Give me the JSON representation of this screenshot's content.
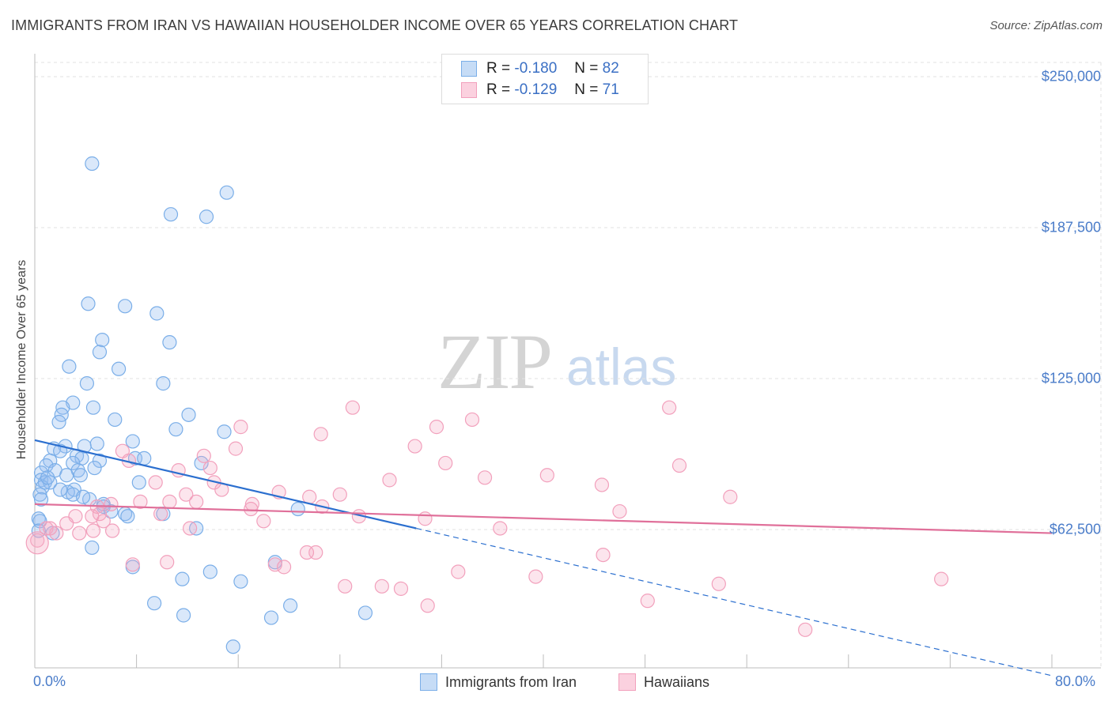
{
  "title": "IMMIGRANTS FROM IRAN VS HAWAIIAN HOUSEHOLDER INCOME OVER 65 YEARS CORRELATION CHART",
  "source": "Source: ZipAtlas.com",
  "watermark": {
    "part1": "ZIP",
    "part2": "atlas"
  },
  "legend": {
    "rows": [
      {
        "r_label": "R =",
        "r_value": "-0.180",
        "n_label": "N =",
        "n_value": "82",
        "color": "#7aaee8"
      },
      {
        "r_label": "R =",
        "r_value": "-0.129",
        "n_label": "N =",
        "n_value": "71",
        "color": "#f2a0bc"
      }
    ]
  },
  "chart_data": {
    "type": "scatter",
    "title": "IMMIGRANTS FROM IRAN VS HAWAIIAN HOUSEHOLDER INCOME OVER 65 YEARS CORRELATION CHART",
    "xlabel": "",
    "ylabel": "Householder Income Over 65 years",
    "xlim": [
      0,
      80
    ],
    "ylim": [
      0,
      250000
    ],
    "x_tick_labels": [
      "0.0%",
      "80.0%"
    ],
    "y_ticks": [
      62500,
      125000,
      187500,
      250000
    ],
    "y_tick_labels": [
      "$62,500",
      "$125,000",
      "$187,500",
      "$250,000"
    ],
    "grid": true,
    "series": [
      {
        "name": "Immigrants from Iran",
        "color": "#7aaee8",
        "line_color": "#2b6fcf",
        "trend": {
          "x0": 0,
          "y0": 99500,
          "x1": 30,
          "y1": 63000,
          "dashed_to_x": 80,
          "dashed_to_y": 2000
        },
        "points": [
          [
            4.5,
            214000
          ],
          [
            15.1,
            202000
          ],
          [
            10.7,
            193000
          ],
          [
            13.5,
            192000
          ],
          [
            4.2,
            156000
          ],
          [
            7.1,
            155000
          ],
          [
            9.6,
            152000
          ],
          [
            5.3,
            141000
          ],
          [
            10.6,
            140000
          ],
          [
            5.1,
            136000
          ],
          [
            2.7,
            130000
          ],
          [
            6.6,
            129000
          ],
          [
            4.1,
            123000
          ],
          [
            10.1,
            123000
          ],
          [
            3.0,
            115000
          ],
          [
            2.2,
            113000
          ],
          [
            4.6,
            113000
          ],
          [
            2.1,
            110000
          ],
          [
            12.1,
            110000
          ],
          [
            6.3,
            108000
          ],
          [
            1.9,
            107000
          ],
          [
            11.1,
            104000
          ],
          [
            14.9,
            103000
          ],
          [
            7.7,
            99000
          ],
          [
            4.9,
            98000
          ],
          [
            3.9,
            97000
          ],
          [
            2.4,
            97000
          ],
          [
            1.5,
            96000
          ],
          [
            2.0,
            95000
          ],
          [
            3.3,
            93000
          ],
          [
            7.9,
            92000
          ],
          [
            8.6,
            92000
          ],
          [
            3.7,
            92000
          ],
          [
            1.2,
            91000
          ],
          [
            5.1,
            91000
          ],
          [
            3.0,
            90000
          ],
          [
            0.9,
            89000
          ],
          [
            13.1,
            90000
          ],
          [
            4.7,
            88000
          ],
          [
            1.6,
            87000
          ],
          [
            3.4,
            87000
          ],
          [
            0.5,
            86000
          ],
          [
            2.5,
            85000
          ],
          [
            3.6,
            85000
          ],
          [
            0.5,
            83000
          ],
          [
            0.8,
            82000
          ],
          [
            1.2,
            82000
          ],
          [
            8.2,
            82000
          ],
          [
            0.6,
            80000
          ],
          [
            3.1,
            79000
          ],
          [
            2.6,
            78000
          ],
          [
            3.0,
            77000
          ],
          [
            0.4,
            77000
          ],
          [
            0.5,
            75000
          ],
          [
            4.3,
            75000
          ],
          [
            5.4,
            73000
          ],
          [
            5.4,
            72000
          ],
          [
            20.7,
            71000
          ],
          [
            7.1,
            69000
          ],
          [
            10.1,
            69000
          ],
          [
            0.3,
            67000
          ],
          [
            7.3,
            68000
          ],
          [
            0.4,
            66000
          ],
          [
            12.7,
            63000
          ],
          [
            1.4,
            61000
          ],
          [
            4.5,
            55000
          ],
          [
            18.9,
            49000
          ],
          [
            7.7,
            47000
          ],
          [
            13.8,
            45000
          ],
          [
            11.6,
            42000
          ],
          [
            16.2,
            41000
          ],
          [
            9.4,
            32000
          ],
          [
            20.1,
            31000
          ],
          [
            26.0,
            28000
          ],
          [
            11.7,
            27000
          ],
          [
            18.6,
            26000
          ],
          [
            15.6,
            14000
          ],
          [
            0.3,
            62000
          ],
          [
            2.0,
            79000
          ],
          [
            3.8,
            76000
          ],
          [
            6.0,
            70000
          ],
          [
            1.0,
            84000
          ]
        ]
      },
      {
        "name": "Hawaiians",
        "color": "#f2a0bc",
        "line_color": "#e0709a",
        "trend": {
          "x0": 0,
          "y0": 73000,
          "x1": 80,
          "y1": 61000
        },
        "points": [
          [
            25.0,
            113000
          ],
          [
            49.9,
            113000
          ],
          [
            34.4,
            108000
          ],
          [
            16.2,
            105000
          ],
          [
            31.6,
            105000
          ],
          [
            22.5,
            102000
          ],
          [
            29.9,
            97000
          ],
          [
            15.8,
            96000
          ],
          [
            6.9,
            95000
          ],
          [
            13.3,
            93000
          ],
          [
            7.4,
            91000
          ],
          [
            32.3,
            90000
          ],
          [
            50.7,
            89000
          ],
          [
            13.8,
            88000
          ],
          [
            11.3,
            87000
          ],
          [
            40.3,
            85000
          ],
          [
            35.4,
            84000
          ],
          [
            27.9,
            83000
          ],
          [
            9.5,
            82000
          ],
          [
            14.1,
            82000
          ],
          [
            44.6,
            81000
          ],
          [
            14.7,
            79000
          ],
          [
            19.2,
            78000
          ],
          [
            11.9,
            77000
          ],
          [
            24.0,
            77000
          ],
          [
            54.7,
            76000
          ],
          [
            21.6,
            76000
          ],
          [
            8.3,
            74000
          ],
          [
            10.6,
            74000
          ],
          [
            12.7,
            74000
          ],
          [
            6.0,
            73000
          ],
          [
            17.1,
            73000
          ],
          [
            22.6,
            72000
          ],
          [
            4.9,
            72000
          ],
          [
            17.0,
            71000
          ],
          [
            46.0,
            70000
          ],
          [
            5.1,
            69000
          ],
          [
            9.9,
            69000
          ],
          [
            3.2,
            68000
          ],
          [
            4.5,
            68000
          ],
          [
            25.5,
            68000
          ],
          [
            30.7,
            67000
          ],
          [
            18.0,
            66000
          ],
          [
            5.4,
            66000
          ],
          [
            2.5,
            65000
          ],
          [
            12.2,
            63000
          ],
          [
            36.6,
            63000
          ],
          [
            0.9,
            63000
          ],
          [
            6.1,
            62000
          ],
          [
            4.6,
            62000
          ],
          [
            1.7,
            61000
          ],
          [
            3.5,
            61000
          ],
          [
            22.1,
            53000
          ],
          [
            21.4,
            53000
          ],
          [
            44.7,
            52000
          ],
          [
            10.4,
            49000
          ],
          [
            18.9,
            48000
          ],
          [
            7.7,
            48000
          ],
          [
            19.6,
            47000
          ],
          [
            33.3,
            45000
          ],
          [
            39.4,
            43000
          ],
          [
            71.3,
            42000
          ],
          [
            53.8,
            40000
          ],
          [
            27.3,
            39000
          ],
          [
            24.4,
            39000
          ],
          [
            28.8,
            38000
          ],
          [
            48.2,
            33000
          ],
          [
            30.9,
            31000
          ],
          [
            60.6,
            21000
          ],
          [
            0.2,
            58000
          ],
          [
            1.2,
            63000
          ]
        ]
      }
    ]
  }
}
